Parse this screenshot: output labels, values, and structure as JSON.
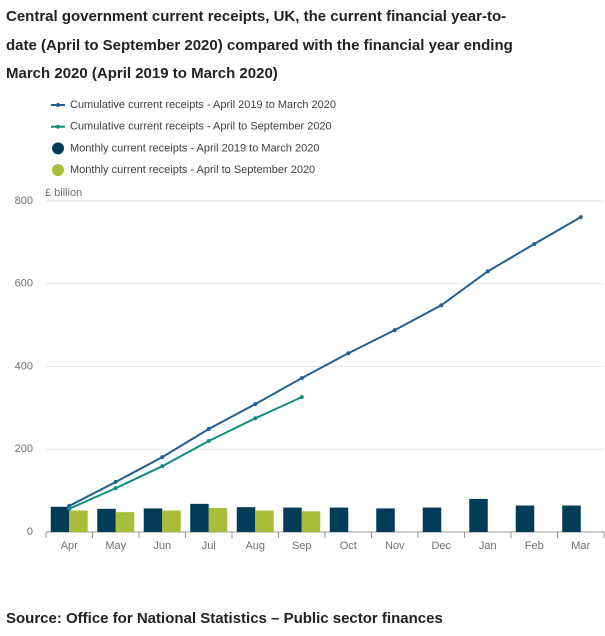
{
  "chart_data": {
    "type": "combo",
    "title": "Central government current receipts, UK, the current financial year-to-date (April to September 2020) compared with the financial year ending March 2020 (April 2019 to March 2020)",
    "y_axis_label": "£ billion",
    "source": "Source: Office for National Statistics – Public sector finances",
    "categories": [
      "Apr",
      "May",
      "Jun",
      "Jul",
      "Aug",
      "Sep",
      "Oct",
      "Nov",
      "Dec",
      "Jan",
      "Feb",
      "Mar"
    ],
    "ylim": [
      0,
      800
    ],
    "yticks": [
      0,
      200,
      400,
      600,
      800
    ],
    "grid": true,
    "series": [
      {
        "name": "Cumulative current receipts - April 2019 to March 2020",
        "type": "line",
        "color": "#206095",
        "values": [
          63,
          121,
          181,
          249,
          309,
          372,
          432,
          488,
          548,
          630,
          696,
          761
        ]
      },
      {
        "name": "Cumulative current receipts - April to September 2020",
        "type": "line",
        "color": "#118c7b",
        "values": [
          56,
          106,
          159,
          220,
          275,
          326,
          null,
          null,
          null,
          null,
          null,
          null
        ]
      },
      {
        "name": "Monthly current receipts - April 2019 to March 2020",
        "type": "bar",
        "color": "#003c57",
        "values": [
          61,
          56,
          57,
          68,
          60,
          59,
          59,
          57,
          59,
          80,
          64,
          64
        ]
      },
      {
        "name": "Monthly current receipts - April to September 2020",
        "type": "bar",
        "color": "#a8bd3a",
        "values": [
          52,
          48,
          52,
          58,
          52,
          50,
          null,
          null,
          null,
          null,
          null,
          null
        ]
      }
    ]
  }
}
